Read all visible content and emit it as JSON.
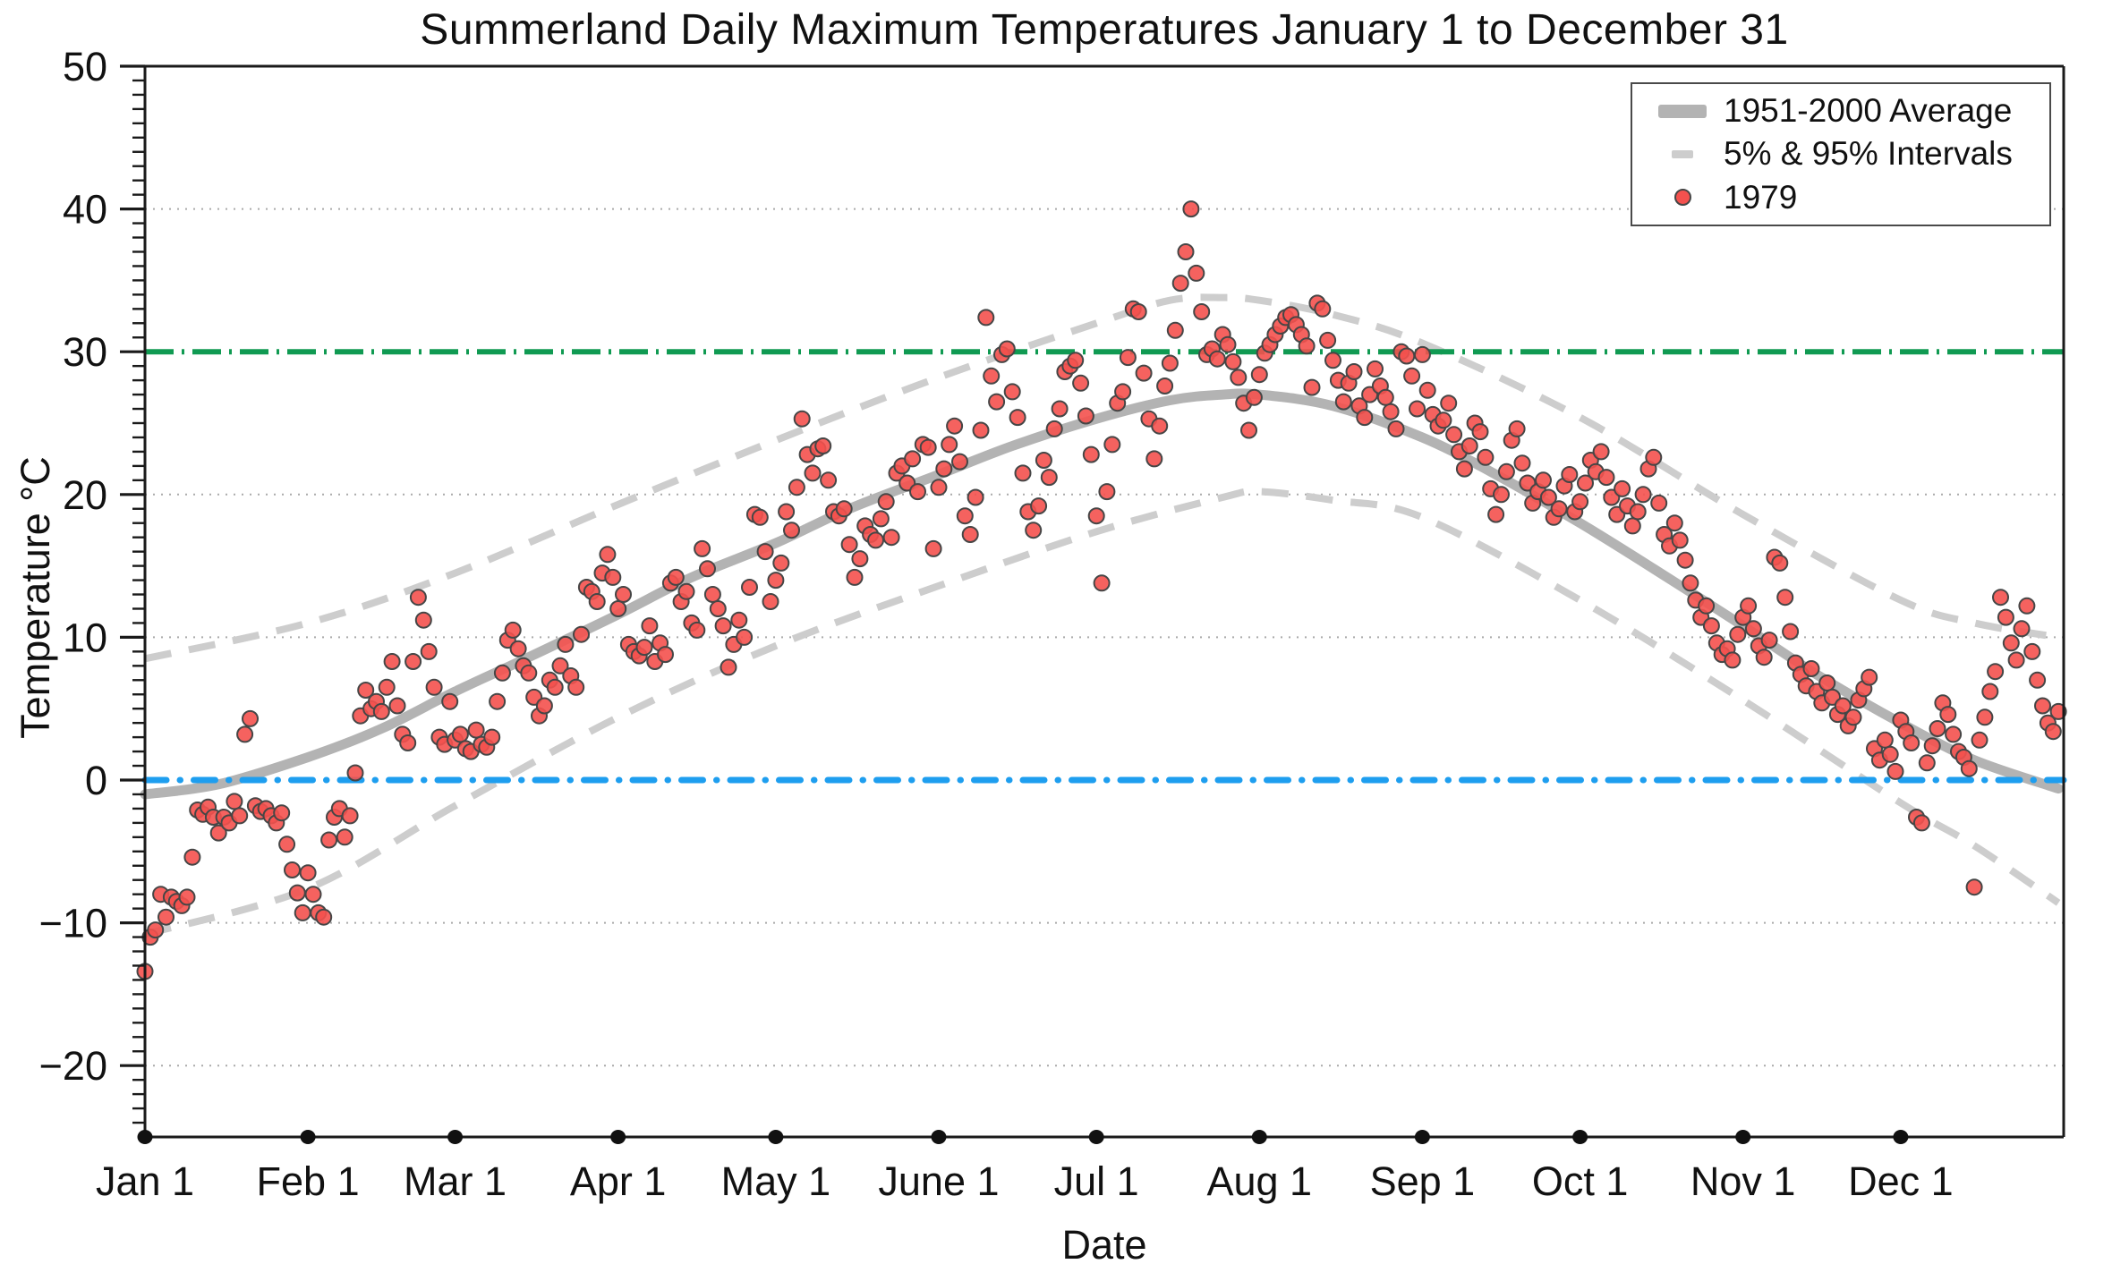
{
  "title": "Summerland Daily Maximum Temperatures January 1 to December 31",
  "axes": {
    "x_label": "Date",
    "y_label": "Temperature °C",
    "y_ticks": [
      {
        "label": "50",
        "value": 50
      },
      {
        "label": "40",
        "value": 40
      },
      {
        "label": "30",
        "value": 30
      },
      {
        "label": "20",
        "value": 20
      },
      {
        "label": "10",
        "value": 10
      },
      {
        "label": "0",
        "value": 0
      },
      {
        "label": "−10",
        "value": -10
      },
      {
        "label": "−20",
        "value": -20
      }
    ],
    "x_ticks": [
      {
        "label": "Jan 1",
        "day": 1
      },
      {
        "label": "Feb 1",
        "day": 32
      },
      {
        "label": "Mar 1",
        "day": 60
      },
      {
        "label": "Apr 1",
        "day": 91
      },
      {
        "label": "May 1",
        "day": 121
      },
      {
        "label": "June 1",
        "day": 152
      },
      {
        "label": "Jul 1",
        "day": 182
      },
      {
        "label": "Aug 1",
        "day": 213
      },
      {
        "label": "Sep 1",
        "day": 244
      },
      {
        "label": "Oct 1",
        "day": 274
      },
      {
        "label": "Nov 1",
        "day": 305
      },
      {
        "label": "Dec 1",
        "day": 335
      }
    ],
    "gridline_values": [
      40,
      20,
      10,
      -10,
      -20
    ]
  },
  "legend": {
    "items": [
      {
        "label": "1951-2000 Average",
        "swatch": "thick-gray-line"
      },
      {
        "label": "5% & 95% Intervals",
        "swatch": "gray-dash"
      },
      {
        "label": "1979",
        "swatch": "red-dot"
      }
    ]
  },
  "colors": {
    "scatter_fill": "#f4514e",
    "scatter_edge": "#464646",
    "mean_line": "#b3b3b3",
    "interval_line": "#cdcdcd",
    "green_line": "#109a52",
    "blue_line": "#1e9eef",
    "grid": "#9c9c9c",
    "axis": "#1a1a1a"
  },
  "chart_data": {
    "type": "scatter",
    "title": "Summerland Daily Maximum Temperatures January 1 to December 31",
    "xlabel": "Date",
    "ylabel": "Temperature °C",
    "ylim": [
      -25,
      50
    ],
    "x_range_days": 365,
    "grid": "dotted horizontal at 40, 20, 10, -10, -20",
    "legend_position": "top-right",
    "reference_lines": [
      {
        "name": "30C-threshold-line",
        "value": 30,
        "color": "#109a52",
        "style": "dash-dot",
        "width": 6
      },
      {
        "name": "0C-freezing-line",
        "value": 0,
        "color": "#1e9eef",
        "style": "dash-dot-round",
        "width": 7
      }
    ],
    "series": [
      {
        "name": "1951-2000 Average",
        "type": "line",
        "style": "solid thick gray",
        "control_points": [
          [
            1,
            -1.0
          ],
          [
            15,
            -0.3
          ],
          [
            32,
            1.6
          ],
          [
            46,
            3.6
          ],
          [
            60,
            6.2
          ],
          [
            74,
            8.6
          ],
          [
            91,
            11.6
          ],
          [
            105,
            14.2
          ],
          [
            121,
            16.6
          ],
          [
            135,
            19.0
          ],
          [
            152,
            21.4
          ],
          [
            166,
            23.4
          ],
          [
            182,
            25.3
          ],
          [
            196,
            26.6
          ],
          [
            206,
            27.0
          ],
          [
            213,
            27.0
          ],
          [
            227,
            26.2
          ],
          [
            244,
            24.0
          ],
          [
            258,
            21.4
          ],
          [
            274,
            18.0
          ],
          [
            288,
            14.8
          ],
          [
            305,
            10.8
          ],
          [
            319,
            7.4
          ],
          [
            335,
            4.0
          ],
          [
            349,
            1.4
          ],
          [
            365,
            -0.6
          ]
        ]
      },
      {
        "name": "95% Interval (upper)",
        "type": "line",
        "style": "dashed gray",
        "control_points": [
          [
            1,
            8.5
          ],
          [
            32,
            11.0
          ],
          [
            60,
            14.5
          ],
          [
            91,
            19.3
          ],
          [
            121,
            23.8
          ],
          [
            152,
            28.2
          ],
          [
            182,
            32.0
          ],
          [
            196,
            33.6
          ],
          [
            206,
            33.8
          ],
          [
            213,
            33.6
          ],
          [
            227,
            32.6
          ],
          [
            244,
            30.6
          ],
          [
            274,
            25.4
          ],
          [
            305,
            18.6
          ],
          [
            335,
            12.6
          ],
          [
            349,
            11.0
          ],
          [
            365,
            10.0
          ]
        ]
      },
      {
        "name": "5% Interval (lower)",
        "type": "line",
        "style": "dashed gray",
        "control_points": [
          [
            1,
            -10.8
          ],
          [
            32,
            -7.6
          ],
          [
            60,
            -1.8
          ],
          [
            91,
            4.4
          ],
          [
            121,
            9.4
          ],
          [
            152,
            13.6
          ],
          [
            182,
            17.4
          ],
          [
            206,
            19.8
          ],
          [
            213,
            20.2
          ],
          [
            227,
            19.6
          ],
          [
            244,
            18.4
          ],
          [
            274,
            12.6
          ],
          [
            305,
            5.6
          ],
          [
            335,
            -1.6
          ],
          [
            349,
            -4.6
          ],
          [
            365,
            -8.6
          ]
        ]
      },
      {
        "name": "1979",
        "type": "scatter",
        "x_unit": "day-of-year (1 = Jan 1)",
        "values": [
          -13.4,
          -11.0,
          -10.5,
          -8.0,
          -9.6,
          -8.2,
          -8.5,
          -8.8,
          -8.2,
          -5.4,
          -2.1,
          -2.4,
          -1.9,
          -2.6,
          -3.7,
          -2.6,
          -3.0,
          -1.5,
          -2.5,
          3.2,
          4.3,
          -1.8,
          -2.2,
          -2.0,
          -2.5,
          -3.0,
          -2.3,
          -4.5,
          -6.3,
          -7.9,
          -9.3,
          -6.5,
          -8.0,
          -9.3,
          -9.6,
          -4.2,
          -2.6,
          -2.0,
          -4.0,
          -2.5,
          0.5,
          4.5,
          6.3,
          5.0,
          5.5,
          4.8,
          6.5,
          8.3,
          5.2,
          3.2,
          2.6,
          8.3,
          12.8,
          11.2,
          9.0,
          6.5,
          3.0,
          2.5,
          5.5,
          2.8,
          3.2,
          2.2,
          2.0,
          3.5,
          2.5,
          2.3,
          3.0,
          5.5,
          7.5,
          9.8,
          10.5,
          9.2,
          8.0,
          7.5,
          5.8,
          4.5,
          5.2,
          7.0,
          6.5,
          8.0,
          9.5,
          7.3,
          6.5,
          10.2,
          13.5,
          13.2,
          12.5,
          14.5,
          15.8,
          14.2,
          12.0,
          13.0,
          9.5,
          9.0,
          8.7,
          9.3,
          10.8,
          8.3,
          9.6,
          8.8,
          13.8,
          14.2,
          12.5,
          13.2,
          11.0,
          10.5,
          16.2,
          14.8,
          13.0,
          12.0,
          10.8,
          7.9,
          9.5,
          11.2,
          10.0,
          13.5,
          18.6,
          18.4,
          16.0,
          12.5,
          14.0,
          15.2,
          18.8,
          17.5,
          20.5,
          25.3,
          22.8,
          21.5,
          23.2,
          23.4,
          21.0,
          18.8,
          18.5,
          19.0,
          16.5,
          14.2,
          15.5,
          17.8,
          17.2,
          16.8,
          18.3,
          19.5,
          17.0,
          21.5,
          22.0,
          20.8,
          22.5,
          20.2,
          23.5,
          23.3,
          16.2,
          20.5,
          21.8,
          23.5,
          24.8,
          22.3,
          18.5,
          17.2,
          19.8,
          24.5,
          32.4,
          28.3,
          26.5,
          29.8,
          30.2,
          27.2,
          25.4,
          21.5,
          18.8,
          17.5,
          19.2,
          22.4,
          21.2,
          24.6,
          26.0,
          28.6,
          29.0,
          29.4,
          27.8,
          25.5,
          22.8,
          18.5,
          13.8,
          20.2,
          23.5,
          26.4,
          27.2,
          29.6,
          33.0,
          32.8,
          28.5,
          25.3,
          22.5,
          24.8,
          27.6,
          29.2,
          31.5,
          34.8,
          37.0,
          40.0,
          35.5,
          32.8,
          29.8,
          30.2,
          29.5,
          31.2,
          30.5,
          29.3,
          28.2,
          26.4,
          24.5,
          26.8,
          28.4,
          29.9,
          30.5,
          31.2,
          31.8,
          32.4,
          32.6,
          31.9,
          31.2,
          30.4,
          27.5,
          33.4,
          33.0,
          30.8,
          29.4,
          28.0,
          26.5,
          27.8,
          28.6,
          26.2,
          25.4,
          27.0,
          28.8,
          27.6,
          26.8,
          25.8,
          24.6,
          30.0,
          29.7,
          28.3,
          26.0,
          29.8,
          27.3,
          25.6,
          24.8,
          25.2,
          26.4,
          24.2,
          23.0,
          21.8,
          23.4,
          25.0,
          24.4,
          22.6,
          20.4,
          18.6,
          20.0,
          21.6,
          23.8,
          24.6,
          22.2,
          20.8,
          19.4,
          20.2,
          21.0,
          19.8,
          18.4,
          19.0,
          20.6,
          21.4,
          18.8,
          19.5,
          20.8,
          22.4,
          21.6,
          23.0,
          21.2,
          19.8,
          18.6,
          20.4,
          19.2,
          17.8,
          18.8,
          20.0,
          21.8,
          22.6,
          19.4,
          17.2,
          16.4,
          18.0,
          16.8,
          15.4,
          13.8,
          12.6,
          11.4,
          12.2,
          10.8,
          9.6,
          8.8,
          9.2,
          8.4,
          10.2,
          11.4,
          12.2,
          10.6,
          9.4,
          8.6,
          9.8,
          15.6,
          15.2,
          12.8,
          10.4,
          8.2,
          7.4,
          6.6,
          7.8,
          6.2,
          5.4,
          6.8,
          5.8,
          4.6,
          5.2,
          3.8,
          4.4,
          5.6,
          6.4,
          7.2,
          2.2,
          1.4,
          2.8,
          1.8,
          0.6,
          4.2,
          3.4,
          2.6,
          -2.6,
          -3.0,
          1.2,
          2.4,
          3.6,
          5.4,
          4.6,
          3.2,
          2.0,
          1.6,
          0.8,
          -7.5,
          2.8,
          4.4,
          6.2,
          7.6,
          12.8,
          11.4,
          9.6,
          8.4,
          10.6,
          12.2,
          9.0,
          7.0,
          5.2,
          4.0,
          3.4,
          4.8
        ]
      }
    ]
  }
}
